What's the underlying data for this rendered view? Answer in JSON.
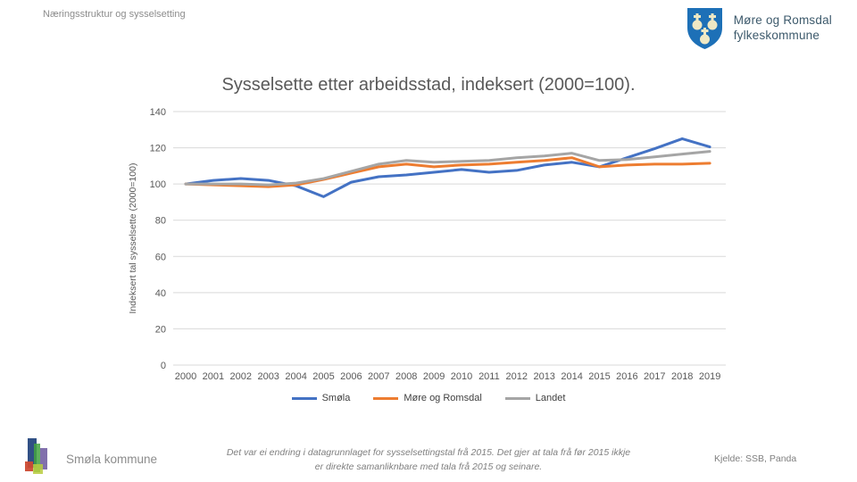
{
  "header": {
    "title": "Næringsstruktur og sysselsetting"
  },
  "logo": {
    "line1": "Møre og Romsdal",
    "line2": "fylkeskommune",
    "shield_color": "#1d70b7",
    "emblem_color": "#efe8c4"
  },
  "chart_data": {
    "type": "line",
    "title": "Sysselsette etter arbeidsstad, indeksert (2000=100).",
    "ylabel": "Indeksert tal sysselsette (2000=100)",
    "xlabel": "",
    "categories": [
      "2000",
      "2001",
      "2002",
      "2003",
      "2004",
      "2005",
      "2006",
      "2007",
      "2008",
      "2009",
      "2010",
      "2011",
      "2012",
      "2013",
      "2014",
      "2015",
      "2016",
      "2017",
      "2018",
      "2019"
    ],
    "ylim": [
      0,
      140
    ],
    "y_tick_step": 20,
    "grid": true,
    "legend_position": "bottom",
    "gridline_color": "#d9d9d9",
    "series": [
      {
        "name": "Smøla",
        "color": "#4472C4",
        "values": [
          100,
          102,
          103,
          102,
          99,
          93,
          101,
          104,
          105,
          106.5,
          108,
          106.5,
          107.5,
          110.5,
          112,
          109.5,
          114.5,
          119.5,
          125,
          120.5
        ]
      },
      {
        "name": "Møre og Romsdal",
        "color": "#ED7D31",
        "values": [
          100,
          99.5,
          99,
          98.5,
          99.5,
          102.5,
          106,
          109.5,
          111,
          109.5,
          110.5,
          111,
          112,
          113,
          114.5,
          109.5,
          110.5,
          111,
          111,
          111.5
        ]
      },
      {
        "name": "Landet",
        "color": "#A5A5A5",
        "values": [
          100,
          100,
          100,
          99.5,
          100.5,
          103,
          107,
          111,
          113,
          112,
          112.5,
          113,
          114.5,
          115.5,
          117,
          113,
          113.5,
          115,
          116.5,
          118
        ]
      }
    ]
  },
  "footer": {
    "municipality": "Smøla kommune",
    "note_line1": "Det var ei endring i datagrunnlaget for sysselsettingstal frå 2015. Det gjer at tala frå før 2015 ikkje",
    "note_line2": "er direkte samanliknbare med tala frå 2015 og seinare.",
    "source": "Kjelde: SSB, Panda"
  }
}
